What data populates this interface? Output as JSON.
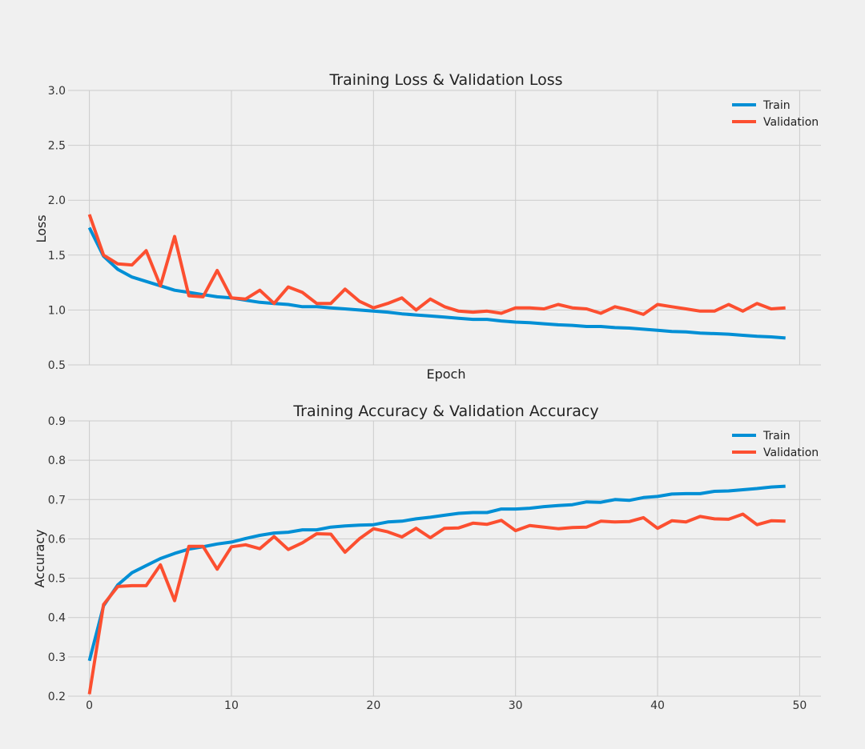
{
  "chart_data": [
    {
      "type": "line",
      "title": "Training Loss & Validation Loss",
      "xlabel": "Epoch",
      "ylabel": "Loss",
      "xlim": [
        -1.5,
        51.5
      ],
      "ylim": [
        0.5,
        3.0
      ],
      "xticks": [],
      "yticks": [
        0.5,
        1.0,
        1.5,
        2.0,
        2.5,
        3.0
      ],
      "ytick_labels": [
        "0.5",
        "1.0",
        "1.5",
        "2.0",
        "2.5",
        "3.0"
      ],
      "grid": true,
      "legend": "top-right",
      "x": [
        0,
        1,
        2,
        3,
        4,
        5,
        6,
        7,
        8,
        9,
        10,
        11,
        12,
        13,
        14,
        15,
        16,
        17,
        18,
        19,
        20,
        21,
        22,
        23,
        24,
        25,
        26,
        27,
        28,
        29,
        30,
        31,
        32,
        33,
        34,
        35,
        36,
        37,
        38,
        39,
        40,
        41,
        42,
        43,
        44,
        45,
        46,
        47,
        48,
        49
      ],
      "series": [
        {
          "name": "Train",
          "color": "#008fd5",
          "values": [
            1.75,
            1.49,
            1.37,
            1.3,
            1.26,
            1.22,
            1.18,
            1.16,
            1.14,
            1.12,
            1.11,
            1.09,
            1.07,
            1.06,
            1.05,
            1.03,
            1.03,
            1.02,
            1.01,
            1.0,
            0.99,
            0.98,
            0.965,
            0.955,
            0.945,
            0.935,
            0.925,
            0.915,
            0.915,
            0.9,
            0.89,
            0.885,
            0.875,
            0.865,
            0.86,
            0.85,
            0.85,
            0.84,
            0.835,
            0.825,
            0.815,
            0.805,
            0.8,
            0.79,
            0.785,
            0.78,
            0.77,
            0.76,
            0.755,
            0.745
          ]
        },
        {
          "name": "Validation",
          "color": "#fc4f30",
          "values": [
            1.87,
            1.5,
            1.42,
            1.41,
            1.54,
            1.22,
            1.67,
            1.13,
            1.12,
            1.36,
            1.11,
            1.1,
            1.18,
            1.06,
            1.21,
            1.16,
            1.06,
            1.06,
            1.19,
            1.08,
            1.02,
            1.06,
            1.11,
            1.0,
            1.1,
            1.03,
            0.99,
            0.98,
            0.99,
            0.97,
            1.02,
            1.02,
            1.01,
            1.05,
            1.02,
            1.01,
            0.97,
            1.03,
            1.0,
            0.96,
            1.05,
            1.03,
            1.01,
            0.99,
            0.99,
            1.05,
            0.99,
            1.06,
            1.01,
            1.02
          ]
        }
      ]
    },
    {
      "type": "line",
      "title": "Training Accuracy & Validation Accuracy",
      "xlabel": "",
      "ylabel": "Accuracy",
      "xlim": [
        -1.5,
        51.5
      ],
      "ylim": [
        0.2,
        0.9
      ],
      "xticks": [
        0,
        10,
        20,
        30,
        40,
        50
      ],
      "xtick_labels": [
        "0",
        "10",
        "20",
        "30",
        "40",
        "50"
      ],
      "yticks": [
        0.2,
        0.3,
        0.4,
        0.5,
        0.6,
        0.7,
        0.8,
        0.9
      ],
      "ytick_labels": [
        "0.2",
        "0.3",
        "0.4",
        "0.5",
        "0.6",
        "0.7",
        "0.8",
        "0.9"
      ],
      "grid": true,
      "legend": "top-right",
      "x": [
        0,
        1,
        2,
        3,
        4,
        5,
        6,
        7,
        8,
        9,
        10,
        11,
        12,
        13,
        14,
        15,
        16,
        17,
        18,
        19,
        20,
        21,
        22,
        23,
        24,
        25,
        26,
        27,
        28,
        29,
        30,
        31,
        32,
        33,
        34,
        35,
        36,
        37,
        38,
        39,
        40,
        41,
        42,
        43,
        44,
        45,
        46,
        47,
        48,
        49
      ],
      "series": [
        {
          "name": "Train",
          "color": "#008fd5",
          "values": [
            0.29,
            0.43,
            0.483,
            0.514,
            0.532,
            0.55,
            0.563,
            0.574,
            0.58,
            0.587,
            0.592,
            0.601,
            0.609,
            0.615,
            0.617,
            0.623,
            0.623,
            0.63,
            0.633,
            0.635,
            0.636,
            0.643,
            0.645,
            0.651,
            0.655,
            0.66,
            0.665,
            0.667,
            0.667,
            0.676,
            0.676,
            0.678,
            0.682,
            0.685,
            0.687,
            0.694,
            0.693,
            0.7,
            0.698,
            0.705,
            0.708,
            0.714,
            0.715,
            0.715,
            0.721,
            0.722,
            0.725,
            0.728,
            0.732,
            0.734
          ]
        },
        {
          "name": "Validation",
          "color": "#fc4f30",
          "values": [
            0.205,
            0.433,
            0.479,
            0.481,
            0.481,
            0.534,
            0.443,
            0.581,
            0.581,
            0.523,
            0.58,
            0.585,
            0.575,
            0.606,
            0.573,
            0.59,
            0.613,
            0.612,
            0.566,
            0.6,
            0.626,
            0.618,
            0.605,
            0.627,
            0.603,
            0.627,
            0.628,
            0.64,
            0.637,
            0.647,
            0.621,
            0.634,
            0.63,
            0.626,
            0.629,
            0.63,
            0.645,
            0.643,
            0.644,
            0.654,
            0.627,
            0.646,
            0.643,
            0.657,
            0.651,
            0.65,
            0.663,
            0.636,
            0.646,
            0.645
          ]
        }
      ]
    }
  ]
}
